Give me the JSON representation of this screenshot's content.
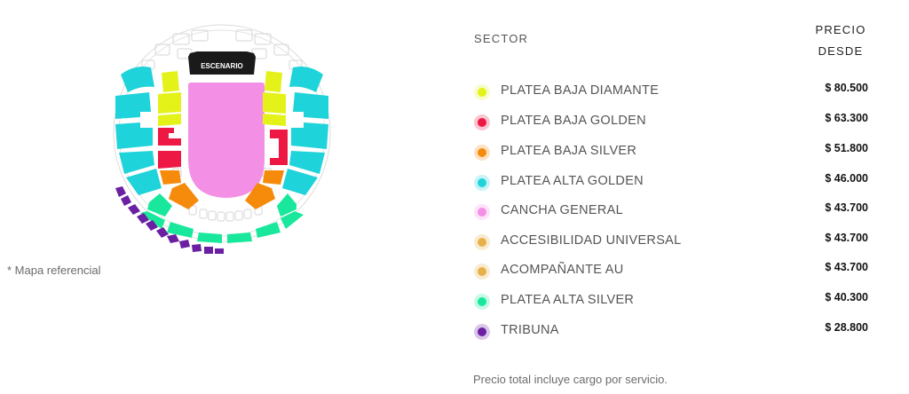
{
  "map": {
    "stage_label": "ESCENARIO",
    "note": "* Mapa referencial"
  },
  "table": {
    "sector_header": "SECTOR",
    "price_header_line1": "PRECIO",
    "price_header_line2": "DESDE",
    "rows": [
      {
        "label": "PLATEA BAJA DIAMANTE",
        "price": "$ 80.500",
        "color": "#e4f21a"
      },
      {
        "label": "PLATEA BAJA GOLDEN",
        "price": "$ 63.300",
        "color": "#ee1845"
      },
      {
        "label": "PLATEA BAJA SILVER",
        "price": "$ 51.800",
        "color": "#f58a0b"
      },
      {
        "label": "PLATEA ALTA GOLDEN",
        "price": "$ 46.000",
        "color": "#1ed3d9"
      },
      {
        "label": "CANCHA GENERAL",
        "price": "$ 43.700",
        "color": "#f390e6"
      },
      {
        "label": "ACCESIBILIDAD UNIVERSAL",
        "price": "$ 43.700",
        "color": "#e8b049"
      },
      {
        "label": "ACOMPAÑANTE AU",
        "price": "$ 43.700",
        "color": "#e8b049"
      },
      {
        "label": "PLATEA ALTA SILVER",
        "price": "$ 40.300",
        "color": "#19e89c"
      },
      {
        "label": "TRIBUNA",
        "price": "$ 28.800",
        "color": "#6b1fa3"
      }
    ],
    "footer_note": "Precio total incluye cargo por servicio."
  },
  "colors": {
    "diamante": "#e4f21a",
    "golden": "#ee1845",
    "silver": "#f58a0b",
    "alta_golden": "#1ed3d9",
    "cancha": "#f390e6",
    "alta_silver": "#19e89c",
    "tribuna": "#6b1fa3",
    "outline": "#d8d8d8"
  }
}
